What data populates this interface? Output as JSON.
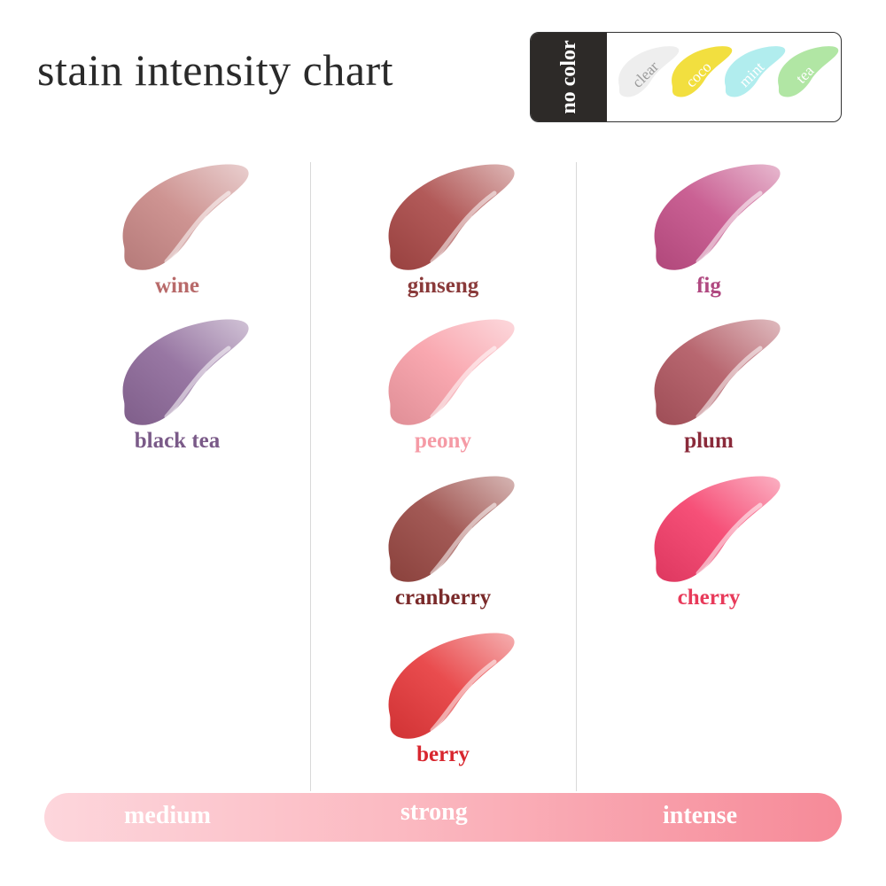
{
  "title": "stain intensity chart",
  "legend": {
    "header": "no color",
    "items": [
      {
        "name": "clear",
        "color": "#ececec",
        "text_color": "#9a9a9a"
      },
      {
        "name": "coco",
        "color": "#f1dc2a",
        "text_color": "#ffffff"
      },
      {
        "name": "mint",
        "color": "#a8ebec",
        "text_color": "#ffffff"
      },
      {
        "name": "tea",
        "color": "#a9e39a",
        "text_color": "#ffffff"
      }
    ]
  },
  "columns": [
    {
      "items": [
        {
          "name": "wine",
          "color": "#c98886",
          "label_color": "#b86a6a"
        },
        {
          "name": "black tea",
          "color": "#8d6899",
          "label_color": "#7a5a88"
        }
      ]
    },
    {
      "items": [
        {
          "name": "ginseng",
          "color": "#a94846",
          "label_color": "#8a3a3a"
        },
        {
          "name": "peony",
          "color": "#f89ea7",
          "label_color": "#f59aa5"
        },
        {
          "name": "cranberry",
          "color": "#994843",
          "label_color": "#7a2a2a"
        },
        {
          "name": "berry",
          "color": "#e7383a",
          "label_color": "#d8262e"
        }
      ]
    },
    {
      "items": [
        {
          "name": "fig",
          "color": "#c44f88",
          "label_color": "#b04880"
        },
        {
          "name": "plum",
          "color": "#b05660",
          "label_color": "#8a2a3a"
        },
        {
          "name": "cherry",
          "color": "#f53d69",
          "label_color": "#e83a5a"
        }
      ]
    }
  ],
  "scale": {
    "labels": [
      "medium",
      "strong",
      "intense"
    ]
  }
}
